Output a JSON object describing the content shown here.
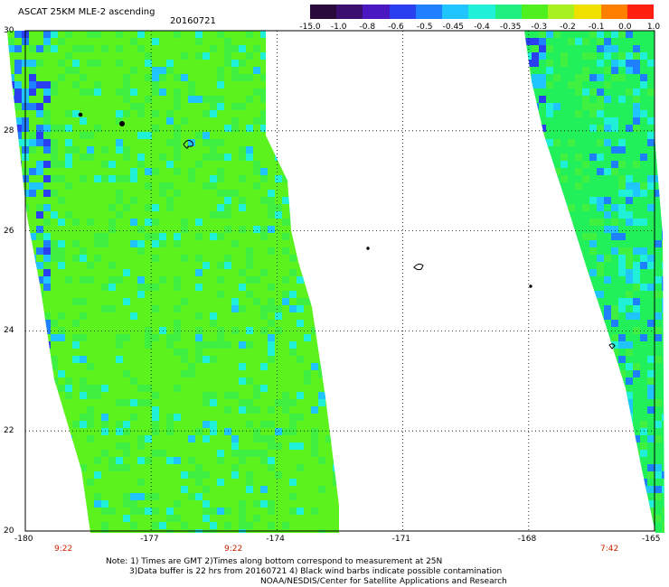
{
  "header": {
    "title": "ASCAT 25KM MLE-2 ascending",
    "date": "20160721"
  },
  "colorbar": {
    "labels": [
      "-15.0",
      "-1.0",
      "-0.8",
      "-0.6",
      "-0.5",
      "-0.45",
      "-0.4",
      "-0.35",
      "-0.3",
      "-0.2",
      "-0.1",
      "0.0",
      "1.0"
    ],
    "colors": [
      "#2a0a3a",
      "#3a0f6e",
      "#4a18c0",
      "#2a40f0",
      "#1f80ff",
      "#20c4ff",
      "#20f0d8",
      "#20f080",
      "#50f020",
      "#a8f020",
      "#f0e000",
      "#ff8000",
      "#ff2010"
    ]
  },
  "axes": {
    "lon_ticks": [
      "-180",
      "-177",
      "-174",
      "-171",
      "-168",
      "-165"
    ],
    "lat_ticks": [
      "30",
      "28",
      "26",
      "24",
      "22",
      "20"
    ]
  },
  "times": [
    "9:22",
    "9:22",
    "7:42"
  ],
  "notes": {
    "line1": "Note: 1) Times are GMT 2)Times along bottom correspond to measurement at 25N",
    "line2": "3)Data buffer is 22 hrs from 20160721 4) Black wind barbs indicate possible contamination",
    "line3": "NOAA/NESDIS/Center for Satellite Applications and Research"
  },
  "swaths": {
    "west_base_color": "#5cf21e",
    "east_base_color": "#22f05a",
    "patch_colors": [
      "#20f0d8",
      "#20c4ff",
      "#1f80ff",
      "#2a40f0",
      "#4a18c0"
    ]
  }
}
